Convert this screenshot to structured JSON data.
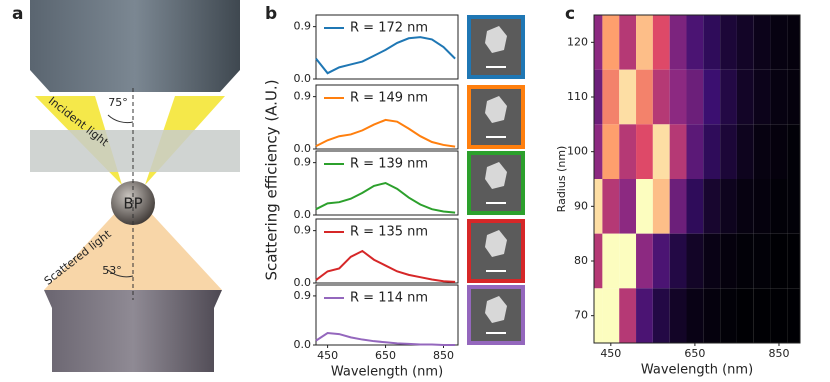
{
  "panel_labels": [
    "a",
    "b",
    "c"
  ],
  "panel_a": {
    "incident_label": "Incident light",
    "incident_angle": "75°",
    "particle": "BP",
    "scattered_label": "Scattered light",
    "scattered_angle": "53°"
  },
  "panel_b": {
    "y_label": "Scattering efficiency (A.U.)"
  },
  "chart_data": [
    {
      "type": "line",
      "x": [
        410,
        450,
        490,
        530,
        570,
        610,
        650,
        690,
        730,
        770,
        810,
        850,
        890
      ],
      "xlim": [
        410,
        900
      ],
      "ylim": [
        0,
        1.1
      ],
      "yticks": [
        {
          "value": 0,
          "label": "0.0"
        },
        0.9
      ],
      "series": [
        {
          "name": "R = 172 nm",
          "color": "#1f77b4",
          "values": [
            0.35,
            0.1,
            0.2,
            0.25,
            0.3,
            0.4,
            0.5,
            0.62,
            0.7,
            0.72,
            0.68,
            0.55,
            0.35
          ]
        }
      ]
    },
    {
      "type": "line",
      "x": [
        410,
        450,
        490,
        530,
        570,
        610,
        650,
        690,
        730,
        770,
        810,
        850,
        890
      ],
      "xlim": [
        410,
        900
      ],
      "ylim": [
        0,
        1.1
      ],
      "yticks": [
        {
          "value": 0,
          "label": "0.0"
        },
        0.9
      ],
      "series": [
        {
          "name": "R = 149 nm",
          "color": "#ff7f0e",
          "values": [
            0.05,
            0.15,
            0.22,
            0.25,
            0.32,
            0.42,
            0.5,
            0.47,
            0.35,
            0.22,
            0.12,
            0.07,
            0.04
          ]
        }
      ]
    },
    {
      "type": "line",
      "x": [
        410,
        450,
        490,
        530,
        570,
        610,
        650,
        690,
        730,
        770,
        810,
        850,
        890
      ],
      "xlim": [
        410,
        900
      ],
      "ylim": [
        0,
        1.1
      ],
      "yticks": [
        {
          "value": 0,
          "label": "0.0"
        },
        0.9
      ],
      "series": [
        {
          "name": "R = 139 nm",
          "color": "#2ca02c",
          "values": [
            0.1,
            0.2,
            0.22,
            0.28,
            0.38,
            0.5,
            0.55,
            0.45,
            0.3,
            0.18,
            0.1,
            0.06,
            0.04
          ]
        }
      ]
    },
    {
      "type": "line",
      "x": [
        410,
        450,
        490,
        530,
        570,
        610,
        650,
        690,
        730,
        770,
        810,
        850,
        890
      ],
      "xlim": [
        410,
        900
      ],
      "ylim": [
        0,
        1.1
      ],
      "yticks": [
        {
          "value": 0,
          "label": "0.0"
        },
        0.9
      ],
      "series": [
        {
          "name": "R = 135 nm",
          "color": "#d62728",
          "values": [
            0.05,
            0.2,
            0.25,
            0.45,
            0.55,
            0.4,
            0.3,
            0.2,
            0.14,
            0.1,
            0.06,
            0.03,
            0.02
          ]
        }
      ]
    },
    {
      "type": "line",
      "x": [
        410,
        450,
        490,
        530,
        570,
        610,
        650,
        690,
        730,
        770,
        810,
        850,
        890
      ],
      "xlim": [
        410,
        900
      ],
      "ylim": [
        0,
        1.1
      ],
      "yticks": [
        {
          "value": 0,
          "label": "0.0"
        },
        0.9
      ],
      "xticks": [
        450,
        650,
        850
      ],
      "xlabel": "Wavelength (nm)",
      "series": [
        {
          "name": "R = 114 nm",
          "color": "#9467bd",
          "values": [
            0.08,
            0.22,
            0.2,
            0.14,
            0.1,
            0.07,
            0.05,
            0.03,
            0.02,
            0.01,
            0.01,
            0,
            0
          ]
        }
      ]
    },
    {
      "type": "heatmap",
      "colormap": "magma",
      "x": [
        410,
        450,
        490,
        530,
        570,
        610,
        650,
        690,
        730,
        770,
        810,
        850,
        890
      ],
      "y": [
        120,
        110,
        100,
        90,
        80,
        70
      ],
      "xlim": [
        410,
        900
      ],
      "ylim": [
        65,
        125
      ],
      "xticks": [
        450,
        650,
        850
      ],
      "yticks": [
        70,
        80,
        90,
        100,
        110,
        120
      ],
      "xlabel": "Wavelength (nm)",
      "ylabel": "Radius (nm)",
      "values": [
        [
          0.5,
          0.85,
          0.6,
          0.9,
          0.7,
          0.45,
          0.3,
          0.2,
          0.12,
          0.08,
          0.05,
          0.03,
          0.02
        ],
        [
          0.4,
          0.8,
          0.95,
          0.8,
          0.6,
          0.5,
          0.4,
          0.25,
          0.15,
          0.08,
          0.05,
          0.03,
          0.02
        ],
        [
          0.5,
          0.85,
          0.6,
          0.7,
          0.95,
          0.6,
          0.35,
          0.2,
          0.12,
          0.06,
          0.03,
          0.02,
          0.01
        ],
        [
          0.95,
          0.6,
          0.5,
          1,
          0.9,
          0.4,
          0.2,
          0.1,
          0.06,
          0.03,
          0.02,
          0.01,
          0.01
        ],
        [
          0.6,
          1,
          1,
          0.5,
          0.3,
          0.15,
          0.08,
          0.04,
          0.02,
          0.01,
          0.01,
          0,
          0
        ],
        [
          1,
          1,
          0.6,
          0.3,
          0.15,
          0.08,
          0.04,
          0.02,
          0.01,
          0,
          0,
          0,
          0
        ]
      ]
    }
  ]
}
